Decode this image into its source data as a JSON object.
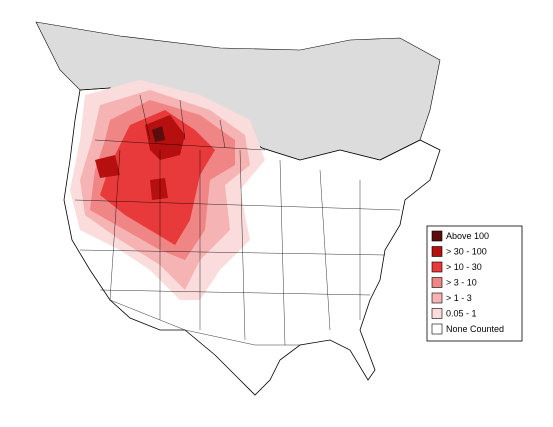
{
  "legend": {
    "items": [
      {
        "label": "Above 100",
        "color": "#5a0d0d"
      },
      {
        "label": "> 30 - 100",
        "color": "#b50f0f"
      },
      {
        "label": "> 10 - 30",
        "color": "#e83a3a"
      },
      {
        "label": "> 3 - 10",
        "color": "#f08585"
      },
      {
        "label": "> 1 - 3",
        "color": "#f6b3b3"
      },
      {
        "label": "0.05 - 1",
        "color": "#fbdcdc"
      },
      {
        "label": "None Counted",
        "color": "#ffffff"
      }
    ]
  }
}
